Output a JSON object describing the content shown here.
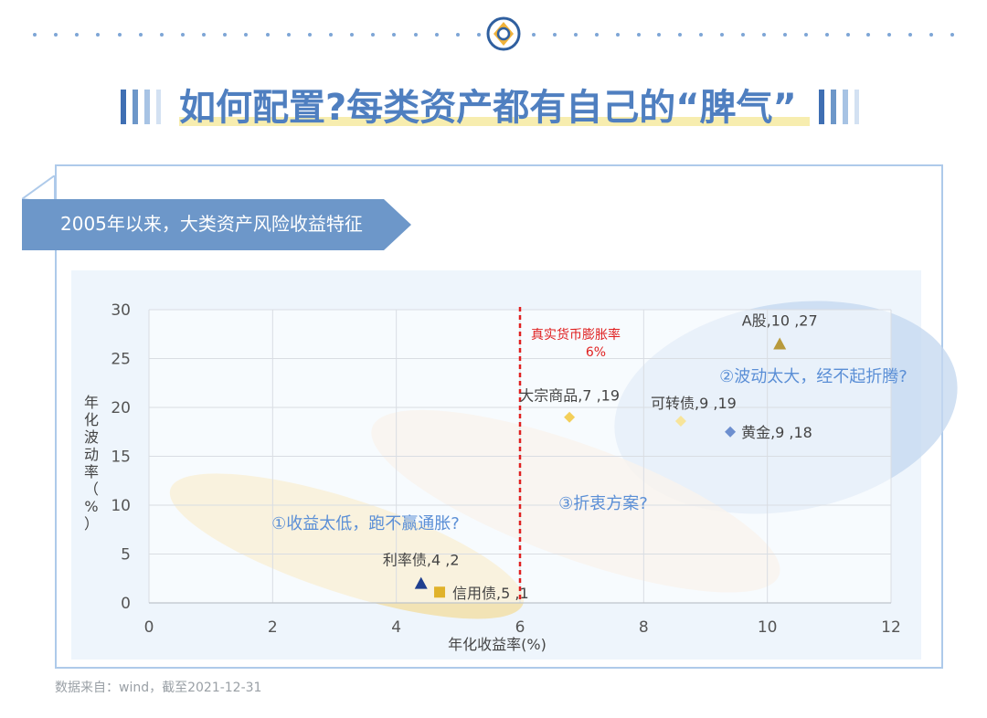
{
  "colors": {
    "accent_blue": "#4f7fc0",
    "banner_blue": "#6d97c9",
    "highlight_yellow": "#f7edaf",
    "inflation_red": "#e02020",
    "annotation_blue": "#5b8fd6"
  },
  "header": {
    "logo_icon": "circular-emblem-icon",
    "title": "如何配置?每类资产都有自己的“脾气”"
  },
  "banner": {
    "label": "2005年以来，大类资产风险收益特征"
  },
  "chart_data": {
    "type": "scatter",
    "xlabel": "年化收益率(%)",
    "ylabel": "年化波动率（%）",
    "xlim": [
      0,
      12
    ],
    "ylim": [
      0,
      30
    ],
    "x_ticks": [
      "0",
      "2",
      "4",
      "6",
      "8",
      "10",
      "12"
    ],
    "y_ticks": [
      "0",
      "5",
      "10",
      "15",
      "20",
      "25",
      "30"
    ],
    "grid": true,
    "points": [
      {
        "label": "A股,10 ,27",
        "x": 10.2,
        "y": 26.5,
        "marker": "triangle",
        "color": "#b89a3c"
      },
      {
        "label": "大宗商品,7 ,19",
        "x": 6.8,
        "y": 19.0,
        "marker": "diamond",
        "color": "#f3cf5a"
      },
      {
        "label": "可转债,9 ,19",
        "x": 8.6,
        "y": 18.6,
        "marker": "diamond",
        "color": "#f7e49a"
      },
      {
        "label": "黄金,9 ,18",
        "x": 9.4,
        "y": 17.5,
        "marker": "diamond",
        "color": "#6d8fcf"
      },
      {
        "label": "利率债,4 ,2",
        "x": 4.4,
        "y": 2.0,
        "marker": "triangle",
        "color": "#1f3f8f"
      },
      {
        "label": "信用债,5 ,1",
        "x": 4.7,
        "y": 1.1,
        "marker": "square",
        "color": "#e0b22a"
      }
    ],
    "reference_line": {
      "x": 6,
      "label_line1": "真实货币膨胀率",
      "label_line2": "6%"
    },
    "zones": [
      {
        "label": "①收益太低，跑不赢通胀?",
        "cx": 3.2,
        "cy": 5.8,
        "rx": 3.0,
        "ry": 4.8,
        "rotate": 18,
        "fill": "#f3dea0"
      },
      {
        "label": "②波动太大，经不起折腾?",
        "cx": 10.3,
        "cy": 20.0,
        "rx": 2.8,
        "ry": 10.6,
        "rotate": -10,
        "fill": "#c5d9f0"
      },
      {
        "label": "③折衷方案?",
        "cx": 6.9,
        "cy": 10.4,
        "rx": 3.5,
        "ry": 5.8,
        "rotate": 20,
        "fill": "#f2e6d6"
      }
    ]
  },
  "source": "数据来自：wind，截至2021-12-31"
}
